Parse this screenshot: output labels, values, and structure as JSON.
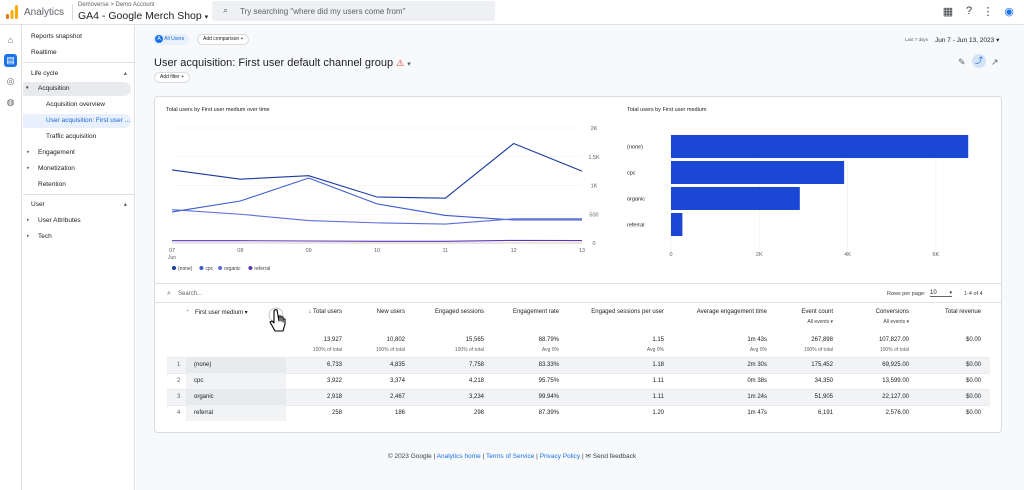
{
  "header": {
    "app_name": "Analytics",
    "breadcrumb": "Demoverse > Demo Account",
    "property": "GA4 - Google Merch Shop",
    "search_placeholder": "Try searching \"where did my users come from\""
  },
  "sidebar": {
    "reports_snapshot": "Reports snapshot",
    "realtime": "Realtime",
    "lifecycle": "Life cycle",
    "acquisition": "Acquisition",
    "acquisition_overview": "Acquisition overview",
    "user_acquisition": "User acquisition: First user ...",
    "traffic_acquisition": "Traffic acquisition",
    "engagement": "Engagement",
    "monetization": "Monetization",
    "retention": "Retention",
    "user": "User",
    "user_attributes": "User Attributes",
    "tech": "Tech"
  },
  "toolbar": {
    "all_users_letter": "A",
    "all_users": "All Users",
    "add_comparison": "Add comparison",
    "date_hint": "Last 7 days",
    "date_range": "Jun 7 - Jun 13, 2023",
    "title": "User acquisition: First user default channel group",
    "add_filter": "Add filter"
  },
  "line_chart": {
    "title": "Total users by First user medium over time",
    "x_labels": [
      "07",
      "08",
      "09",
      "10",
      "11",
      "12",
      "13"
    ],
    "x_sub": "Jun",
    "y_labels": [
      "2K",
      "1.5K",
      "1K",
      "500",
      "0"
    ],
    "ylim": [
      0,
      2000
    ],
    "series": [
      {
        "name": "(none)",
        "color": "#1a3a9e",
        "values": [
          1270,
          1110,
          1170,
          800,
          780,
          1730,
          1250
        ]
      },
      {
        "name": "cpc",
        "color": "#3b5bcd",
        "values": [
          540,
          730,
          1130,
          680,
          480,
          400,
          400
        ]
      },
      {
        "name": "organic",
        "color": "#5c6ed8",
        "values": [
          580,
          500,
          390,
          350,
          330,
          420,
          420
        ]
      },
      {
        "name": "referral",
        "color": "#5e35b1",
        "values": [
          40,
          40,
          35,
          30,
          30,
          45,
          42
        ]
      }
    ]
  },
  "bar_chart": {
    "title": "Total users by First user medium",
    "categories": [
      "(none)",
      "cpc",
      "organic",
      "referral"
    ],
    "values": [
      6733,
      3922,
      2918,
      258
    ],
    "x_labels": [
      "0",
      "2K",
      "4K",
      "6K"
    ],
    "xlim": [
      0,
      7000
    ],
    "color": "#1a47d4"
  },
  "table": {
    "search_placeholder": "Search...",
    "rows_per_page_label": "Rows per page:",
    "rows_per_page": "10",
    "pagination": "1-4 of 4",
    "dimension_header": "First user medium",
    "headers": [
      "Total users",
      "New users",
      "Engaged sessions",
      "Engagement rate",
      "Engaged sessions per user",
      "Average engagement time",
      "Event count",
      "Conversions",
      "Total revenue"
    ],
    "event_filter": "All events",
    "totals": [
      "13,927",
      "10,802",
      "15,565",
      "88.79%",
      "1.15",
      "1m 43s",
      "267,898",
      "107,827.00",
      "$0.00"
    ],
    "totals_sub": [
      "100% of total",
      "100% of total",
      "100% of total",
      "Avg 0%",
      "Avg 0%",
      "Avg 0%",
      "100% of total",
      "100% of total",
      ""
    ],
    "rows": [
      {
        "idx": "1",
        "name": "(none)",
        "values": [
          "6,733",
          "4,835",
          "7,758",
          "83.33%",
          "1.18",
          "2m 30s",
          "175,452",
          "69,925.00",
          "$0.00"
        ]
      },
      {
        "idx": "2",
        "name": "cpc",
        "values": [
          "3,922",
          "3,374",
          "4,218",
          "95.75%",
          "1.11",
          "0m 38s",
          "34,350",
          "13,599.00",
          "$0.00"
        ]
      },
      {
        "idx": "3",
        "name": "organic",
        "values": [
          "2,918",
          "2,467",
          "3,234",
          "99.94%",
          "1.11",
          "1m 24s",
          "51,905",
          "22,127.00",
          "$0.00"
        ]
      },
      {
        "idx": "4",
        "name": "referral",
        "values": [
          "258",
          "186",
          "298",
          "87.39%",
          "1.20",
          "1m 47s",
          "6,191",
          "2,576.00",
          "$0.00"
        ]
      }
    ]
  },
  "footer": {
    "copyright": "© 2023 Google",
    "analytics_home": "Analytics home",
    "terms": "Terms of Service",
    "privacy": "Privacy Policy",
    "feedback": "Send feedback",
    "separator": "|"
  },
  "icons": {
    "search": "⌕",
    "apps": "▦",
    "help": "?",
    "more": "⋮",
    "account": "◉",
    "home": "⌂",
    "reports": "▤",
    "explore": "◎",
    "advertising": "◍",
    "caret_down": "▾",
    "caret_up": "▴",
    "arrow_right": "▸",
    "sort_down": "↓",
    "plus": "+",
    "warning": "⚠",
    "edit": "✎",
    "share": "⤴",
    "insights": "↗",
    "feedback": "✉"
  },
  "colors": {
    "accent": "#1a73e8",
    "bar": "#1a47d4"
  }
}
